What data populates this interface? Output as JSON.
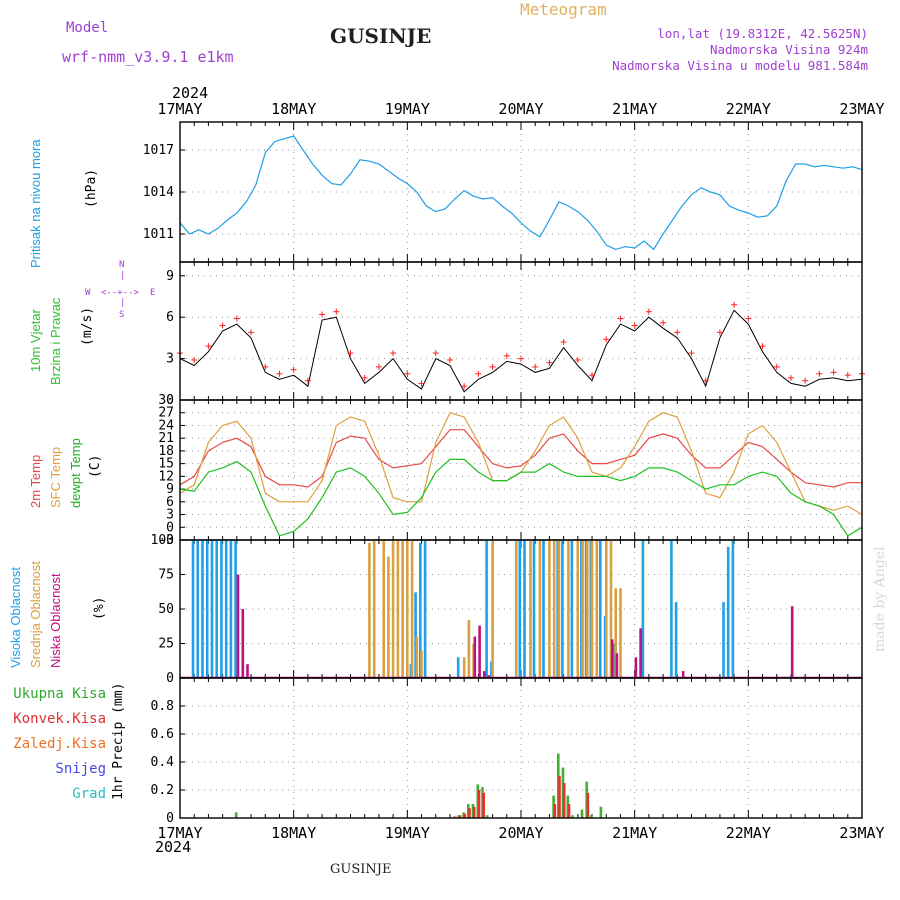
{
  "header": {
    "model_label": "Model",
    "model_name": "wrf-nmm_v3.9.1  e1km",
    "location": "GUSINJE",
    "meteogram_label": "Meteogram",
    "lonlat": "lon,lat (19.8312E, 42.5625N)",
    "elevation": "Nadmorska Visina 924m",
    "model_elevation": "Nadmorska Visina u modelu 981.584m",
    "year": "2024"
  },
  "footer": {
    "year": "2024",
    "location": "GUSINJE",
    "watermark": "made by Angel"
  },
  "axis": {
    "day_labels": [
      "17MAY",
      "18MAY",
      "19MAY",
      "20MAY",
      "21MAY",
      "22MAY",
      "23MAY"
    ],
    "x_range_hours": [
      0,
      144
    ]
  },
  "panel_labels": {
    "pressure": "Pritisak na nivou mora",
    "pressure_unit": "(hPa)",
    "wind_1": "10m Vjetar",
    "wind_2": "Brzina i Pravac",
    "wind_unit": "(m/s)",
    "compass_n": "N",
    "compass_s": "S",
    "compass_w": "W",
    "compass_e": "E",
    "temp_1": "2m Temp",
    "temp_2": "SFC Temp",
    "temp_3": "dewpt Temp",
    "temp_unit": "(C)",
    "cloud_1": "Visoka Oblacnost",
    "cloud_2": "Srednja Oblacnost",
    "cloud_3": "Niska Oblacnost",
    "cloud_unit": "(%)",
    "precip_unit": "1hr Precip (mm)",
    "precip_legend": [
      "Ukupna Kisa",
      "Konvek.Kisa",
      "Zaledj.Kisa",
      "Snijeg",
      "Grad"
    ]
  },
  "colors": {
    "pressure": "#1ea0e6",
    "temp_2m": "#e84848",
    "temp_sfc": "#e0a040",
    "dewpoint": "#20c020",
    "cloud_high": "#20a0e8",
    "cloud_mid": "#d8a040",
    "cloud_low": "#c01080",
    "precip_total": "#40b030",
    "precip_conv": "#e83030",
    "precip_frz": "#f07828",
    "precip_snow": "#5050f0",
    "precip_hail": "#30c8c0",
    "legend_total": "#30a830",
    "legend_conv": "#e03030",
    "legend_frz": "#f07020",
    "legend_snow": "#4848e8",
    "legend_hail": "#28c0c0",
    "label_pressure": "#1ea0e6",
    "label_wind1": "#30c030",
    "label_wind2": "#30c030",
    "label_temp1": "#e84848",
    "label_temp2": "#e0a040",
    "label_temp3": "#20b020",
    "label_cloud1": "#20a0e8",
    "label_cloud2": "#d8a040",
    "label_cloud3": "#c01080",
    "compass": "#a040d0"
  },
  "chart_data": [
    {
      "type": "line",
      "title": "Pritisak na nivou mora",
      "ylabel": "(hPa)",
      "ylim": [
        1009,
        1019
      ],
      "yticks": [
        1011,
        1014,
        1017
      ],
      "series": [
        {
          "key": "pressure",
          "x": [
            0,
            2,
            4,
            6,
            8,
            10,
            12,
            14,
            16,
            18,
            20,
            22,
            24,
            26,
            28,
            30,
            32,
            34,
            36,
            38,
            40,
            42,
            44,
            46,
            48,
            50,
            52,
            54,
            56,
            58,
            60,
            62,
            64,
            66,
            68,
            70,
            72,
            74,
            76,
            78,
            80,
            82,
            84,
            86,
            88,
            90,
            92,
            94,
            96,
            98,
            100,
            102,
            104,
            106,
            108,
            110,
            112,
            114,
            116,
            118,
            120,
            122,
            124,
            126,
            128,
            130,
            132,
            134,
            136,
            138,
            140,
            142,
            144
          ],
          "y": [
            1011.8,
            1011.0,
            1011.3,
            1011.0,
            1011.4,
            1012.0,
            1012.5,
            1013.3,
            1014.5,
            1016.8,
            1017.6,
            1017.8,
            1018.0,
            1017.0,
            1016.0,
            1015.2,
            1014.6,
            1014.5,
            1015.3,
            1016.3,
            1016.2,
            1016.0,
            1015.5,
            1015.0,
            1014.6,
            1014.0,
            1013.0,
            1012.6,
            1012.8,
            1013.5,
            1014.1,
            1013.7,
            1013.5,
            1013.6,
            1013.0,
            1012.5,
            1011.8,
            1011.2,
            1010.8,
            1012.0,
            1013.3,
            1013.0,
            1012.6,
            1012.0,
            1011.2,
            1010.2,
            1009.9,
            1010.1,
            1010.0,
            1010.5,
            1009.9,
            1011.0,
            1012.0,
            1013.0,
            1013.8,
            1014.3,
            1014.0,
            1013.8,
            1013.0,
            1012.7,
            1012.5,
            1012.2,
            1012.3,
            1013.0,
            1014.8,
            1016.0,
            1016.0,
            1015.8,
            1015.9,
            1015.8,
            1015.7,
            1015.8,
            1015.6
          ]
        }
      ]
    },
    {
      "type": "line",
      "title": "10m Vjetar Brzina i Pravac",
      "ylabel": "(m/s)",
      "ylim": [
        0,
        10
      ],
      "yticks": [
        0,
        3,
        6,
        9
      ],
      "series": [
        {
          "key": "wind_speed",
          "x": [
            0,
            3,
            6,
            9,
            12,
            15,
            18,
            21,
            24,
            27,
            30,
            33,
            36,
            39,
            42,
            45,
            48,
            51,
            54,
            57,
            60,
            63,
            66,
            69,
            72,
            75,
            78,
            81,
            84,
            87,
            90,
            93,
            96,
            99,
            102,
            105,
            108,
            111,
            114,
            117,
            120,
            123,
            126,
            129,
            132,
            135,
            138,
            141,
            144
          ],
          "y": [
            3.0,
            2.5,
            3.5,
            5.0,
            5.5,
            4.5,
            2.0,
            1.5,
            1.8,
            1.0,
            5.8,
            6.0,
            3.0,
            1.2,
            2.0,
            3.0,
            1.5,
            0.8,
            3.0,
            2.5,
            0.6,
            1.5,
            2.0,
            2.8,
            2.6,
            2.0,
            2.3,
            3.8,
            2.5,
            1.4,
            4.0,
            5.5,
            5.0,
            6.0,
            5.2,
            4.5,
            3.0,
            1.0,
            4.5,
            6.5,
            5.5,
            3.5,
            2.0,
            1.2,
            1.0,
            1.5,
            1.6,
            1.4,
            1.5
          ]
        }
      ]
    },
    {
      "type": "line",
      "title": "2m Temp / SFC Temp / dewpt Temp",
      "ylabel": "(C)",
      "ylim": [
        -3,
        30
      ],
      "yticks": [
        -3,
        0,
        3,
        6,
        9,
        12,
        15,
        18,
        21,
        24,
        27,
        30
      ],
      "series": [
        {
          "key": "temp_2m",
          "name": "2m Temp",
          "x": [
            0,
            3,
            6,
            9,
            12,
            15,
            18,
            21,
            24,
            27,
            30,
            33,
            36,
            39,
            42,
            45,
            48,
            51,
            54,
            57,
            60,
            63,
            66,
            69,
            72,
            75,
            78,
            81,
            84,
            87,
            90,
            93,
            96,
            99,
            102,
            105,
            108,
            111,
            114,
            117,
            120,
            123,
            126,
            129,
            132,
            135,
            138,
            141,
            144
          ],
          "y": [
            10,
            12,
            18,
            20,
            21,
            19,
            12,
            10,
            10,
            9.5,
            12,
            20,
            21.5,
            21,
            16,
            14,
            14.5,
            15,
            19,
            23,
            23,
            19,
            15,
            14,
            14.5,
            17,
            21,
            22,
            18,
            15,
            15,
            16,
            17,
            21,
            22,
            21,
            17,
            14,
            14,
            17,
            20,
            19,
            16,
            13,
            10.5,
            10,
            9.5,
            10.5,
            10.5
          ]
        },
        {
          "key": "temp_sfc",
          "name": "SFC Temp",
          "x": [
            0,
            3,
            6,
            9,
            12,
            15,
            18,
            21,
            24,
            27,
            30,
            33,
            36,
            39,
            42,
            45,
            48,
            51,
            54,
            57,
            60,
            63,
            66,
            69,
            72,
            75,
            78,
            81,
            84,
            87,
            90,
            93,
            96,
            99,
            102,
            105,
            108,
            111,
            114,
            117,
            120,
            123,
            126,
            129,
            132,
            135,
            138,
            141,
            144
          ],
          "y": [
            8,
            10,
            20,
            24,
            25,
            21,
            8,
            6,
            6,
            6,
            11,
            24,
            26,
            25,
            17,
            7,
            6,
            6,
            20,
            27,
            26,
            20,
            11,
            11,
            13,
            18,
            24,
            26,
            21,
            13,
            12,
            14,
            19,
            25,
            27,
            26,
            18,
            8,
            7,
            13,
            22,
            24,
            20,
            13,
            6,
            5,
            4,
            5,
            3
          ]
        },
        {
          "key": "dewpoint",
          "name": "dewpt Temp",
          "x": [
            0,
            3,
            6,
            9,
            12,
            15,
            18,
            21,
            24,
            27,
            30,
            33,
            36,
            39,
            42,
            45,
            48,
            51,
            54,
            57,
            60,
            63,
            66,
            69,
            72,
            75,
            78,
            81,
            84,
            87,
            90,
            93,
            96,
            99,
            102,
            105,
            108,
            111,
            114,
            117,
            120,
            123,
            126,
            129,
            132,
            135,
            138,
            141,
            144
          ],
          "y": [
            9,
            8.5,
            13,
            14,
            15.5,
            13,
            5,
            -2,
            -1,
            2,
            7,
            13,
            14,
            12,
            8,
            3,
            3.5,
            7,
            13,
            16,
            16,
            13,
            11,
            11,
            13,
            13,
            15,
            13,
            12,
            12,
            12,
            11,
            12,
            14,
            14,
            13,
            11,
            9,
            10,
            10,
            12,
            13,
            12,
            8,
            6,
            5,
            3,
            -2,
            0
          ]
        }
      ]
    },
    {
      "type": "bar",
      "title": "Visoka / Srednja / Niska Oblacnost",
      "ylabel": "(%)",
      "ylim": [
        0,
        100
      ],
      "yticks": [
        0,
        25,
        50,
        75,
        100
      ],
      "series": [
        {
          "key": "cloud_high",
          "name": "Visoka Oblacnost",
          "x": [
            3,
            4,
            5,
            6,
            7,
            8,
            9,
            10,
            11,
            12,
            49,
            50,
            51,
            52,
            59,
            65,
            66,
            72,
            73,
            75,
            77,
            80,
            81,
            83,
            85,
            86,
            87,
            89,
            90,
            92,
            98,
            104,
            105,
            115,
            116,
            117,
            145
          ],
          "y": [
            100,
            100,
            100,
            100,
            100,
            100,
            100,
            100,
            100,
            100,
            10,
            62,
            98,
            100,
            15,
            100,
            12,
            100,
            100,
            100,
            100,
            100,
            100,
            100,
            100,
            100,
            100,
            100,
            45,
            25,
            100,
            100,
            55,
            55,
            95,
            100,
            100
          ]
        },
        {
          "key": "cloud_mid",
          "name": "Srednja Oblacnost",
          "x": [
            40,
            41,
            43,
            44,
            45,
            46,
            47,
            48,
            49,
            50,
            51,
            60,
            61,
            62,
            66,
            71,
            74,
            76,
            78,
            79,
            80,
            82,
            84,
            85,
            86,
            87,
            88,
            90,
            91,
            92,
            93
          ],
          "y": [
            98,
            100,
            100,
            88,
            100,
            100,
            100,
            100,
            100,
            30,
            20,
            15,
            42,
            25,
            100,
            100,
            100,
            100,
            100,
            100,
            100,
            100,
            100,
            100,
            100,
            100,
            100,
            100,
            100,
            65,
            65
          ]
        },
        {
          "key": "cloud_low",
          "name": "Niska Oblacnost",
          "x": [
            12,
            13,
            14,
            62,
            63,
            64,
            65,
            91,
            92,
            96,
            97,
            106,
            129
          ],
          "y": [
            75,
            50,
            10,
            30,
            38,
            5,
            2,
            28,
            18,
            15,
            36,
            5,
            52
          ]
        }
      ]
    },
    {
      "type": "bar",
      "title": "1hr Precip",
      "ylabel": "1hr Precip (mm)",
      "ylim": [
        0,
        1.0
      ],
      "yticks": [
        0,
        0.2,
        0.4,
        0.6,
        0.8
      ],
      "series": [
        {
          "key": "precip_total",
          "name": "Ukupna Kisa",
          "x": [
            12,
            58,
            59,
            60,
            61,
            62,
            63,
            64,
            65,
            79,
            80,
            81,
            82,
            83,
            85,
            86,
            87,
            89
          ],
          "y": [
            0.04,
            0.01,
            0.02,
            0.04,
            0.1,
            0.1,
            0.24,
            0.22,
            0.02,
            0.16,
            0.46,
            0.36,
            0.16,
            0.02,
            0.06,
            0.26,
            0.02,
            0.08
          ]
        },
        {
          "key": "precip_conv",
          "name": "Konvek.Kisa",
          "x": [
            58,
            59,
            60,
            61,
            62,
            63,
            64,
            79,
            80,
            81,
            82,
            86
          ],
          "y": [
            0.01,
            0.02,
            0.03,
            0.07,
            0.08,
            0.2,
            0.18,
            0.1,
            0.3,
            0.25,
            0.1,
            0.18
          ]
        }
      ]
    }
  ]
}
